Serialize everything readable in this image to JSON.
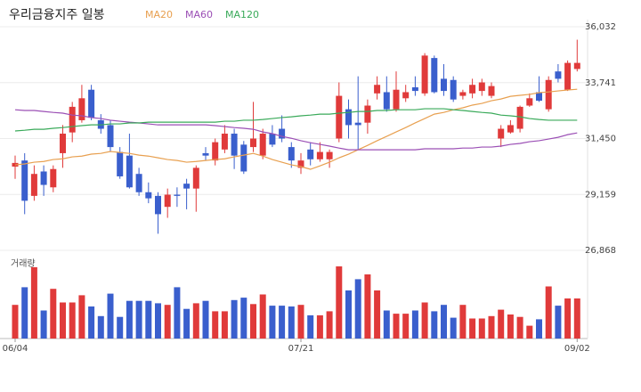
{
  "chart_data": {
    "type": "candlestick",
    "title": "우리금융지주 일봉",
    "volume_label": "거래량",
    "up_color": "#e03a3a",
    "down_color": "#3a5fcd",
    "categories": [
      "06/04",
      null,
      null,
      null,
      null,
      null,
      null,
      null,
      null,
      null,
      null,
      null,
      null,
      null,
      null,
      null,
      null,
      null,
      null,
      null,
      null,
      null,
      null,
      null,
      null,
      null,
      null,
      null,
      null,
      null,
      "07/21",
      null,
      null,
      null,
      null,
      null,
      null,
      null,
      null,
      null,
      null,
      null,
      null,
      null,
      null,
      null,
      null,
      null,
      null,
      null,
      null,
      null,
      null,
      null,
      null,
      null,
      null,
      null,
      null,
      "09/02"
    ],
    "open": [
      30300,
      30550,
      29100,
      30100,
      29450,
      30850,
      31700,
      32200,
      33450,
      32200,
      32000,
      30900,
      30750,
      30000,
      29250,
      29100,
      28650,
      29150,
      29600,
      29400,
      30850,
      30550,
      31000,
      31650,
      31200,
      31100,
      30750,
      31650,
      31850,
      31100,
      30250,
      31000,
      30600,
      30600,
      31450,
      32650,
      32100,
      32100,
      33300,
      33350,
      32650,
      33100,
      33550,
      33300,
      34750,
      33900,
      33850,
      33200,
      33300,
      33400,
      33200,
      31450,
      31700,
      31850,
      32800,
      33350,
      32650,
      34200,
      33450,
      34300
    ],
    "high": [
      30750,
      30850,
      30350,
      30350,
      30350,
      32000,
      32950,
      33650,
      33650,
      32450,
      32200,
      31100,
      31650,
      30250,
      29650,
      29250,
      29400,
      29450,
      29800,
      30350,
      31100,
      31450,
      32000,
      31850,
      31350,
      32950,
      31850,
      32000,
      32400,
      31300,
      30850,
      31300,
      31300,
      31000,
      33750,
      33050,
      34000,
      33050,
      34000,
      34000,
      34200,
      33650,
      34000,
      34950,
      34850,
      34500,
      34000,
      33450,
      33900,
      33900,
      33750,
      32000,
      32200,
      32800,
      33300,
      34000,
      34000,
      34500,
      34650,
      35500
    ],
    "low": [
      29800,
      28350,
      28900,
      29100,
      29250,
      30250,
      31300,
      32100,
      32200,
      31650,
      30900,
      29800,
      29400,
      29100,
      28800,
      27550,
      28200,
      28650,
      28550,
      28450,
      30550,
      30350,
      30850,
      30200,
      30000,
      30900,
      30600,
      31100,
      31300,
      30250,
      30000,
      30350,
      30500,
      30250,
      31300,
      31450,
      31000,
      31650,
      33050,
      32550,
      32550,
      32950,
      33200,
      33200,
      33300,
      33200,
      32950,
      33050,
      33100,
      33200,
      33100,
      31100,
      31650,
      31700,
      32750,
      32950,
      32550,
      33750,
      33400,
      34200
    ],
    "close": [
      30450,
      28900,
      30000,
      29550,
      30200,
      31650,
      32750,
      33100,
      32300,
      31850,
      31100,
      29900,
      29450,
      29250,
      29000,
      28350,
      29150,
      29100,
      29400,
      30250,
      30750,
      31300,
      31650,
      30750,
      30100,
      31450,
      31650,
      31200,
      31450,
      30550,
      30550,
      30600,
      30900,
      30900,
      33200,
      32000,
      32000,
      32800,
      33650,
      32650,
      33450,
      33350,
      33400,
      34850,
      33350,
      33400,
      33050,
      33350,
      33650,
      33750,
      33600,
      31850,
      32000,
      32750,
      33100,
      33000,
      33850,
      33900,
      34550,
      34550
    ],
    "volume": [
      42,
      64,
      89,
      35,
      62,
      45,
      45,
      54,
      40,
      28,
      56,
      27,
      47,
      47,
      47,
      44,
      42,
      64,
      37,
      44,
      47,
      34,
      34,
      48,
      51,
      43,
      55,
      41,
      41,
      40,
      42,
      29,
      29,
      34,
      90,
      60,
      74,
      80,
      60,
      35,
      31,
      31,
      35,
      45,
      34,
      42,
      26,
      42,
      25,
      25,
      28,
      36,
      30,
      27,
      16,
      24,
      65,
      41,
      50,
      50
    ],
    "volume_lim": [
      0,
      100
    ],
    "series": [
      {
        "name": "MA20",
        "color": "#e8a050",
        "values": [
          30370,
          30410,
          30480,
          30510,
          30590,
          30620,
          30700,
          30730,
          30810,
          30840,
          30920,
          30880,
          30840,
          30770,
          30730,
          30660,
          30590,
          30550,
          30480,
          30510,
          30550,
          30590,
          30620,
          30700,
          30770,
          30840,
          30730,
          30590,
          30480,
          30370,
          30300,
          30190,
          30330,
          30480,
          30660,
          30810,
          30990,
          31170,
          31360,
          31540,
          31720,
          31900,
          32090,
          32270,
          32450,
          32520,
          32630,
          32710,
          32820,
          32890,
          33000,
          33070,
          33180,
          33220,
          33260,
          33330,
          33360,
          33400,
          33440,
          33470
        ]
      },
      {
        "name": "MA60",
        "color": "#9b4fb5",
        "values": [
          32630,
          32600,
          32600,
          32560,
          32520,
          32490,
          32410,
          32380,
          32310,
          32270,
          32200,
          32160,
          32120,
          32090,
          32050,
          32010,
          32010,
          32010,
          32010,
          32010,
          32010,
          31980,
          31940,
          31900,
          31870,
          31830,
          31720,
          31650,
          31540,
          31460,
          31360,
          31280,
          31210,
          31140,
          31060,
          30990,
          30990,
          30990,
          30990,
          30990,
          30990,
          30990,
          30990,
          31030,
          31030,
          31030,
          31030,
          31060,
          31060,
          31100,
          31100,
          31140,
          31210,
          31250,
          31320,
          31360,
          31430,
          31500,
          31610,
          31680
        ]
      },
      {
        "name": "MA120",
        "color": "#3aaa5a",
        "values": [
          31760,
          31790,
          31830,
          31830,
          31870,
          31900,
          31940,
          31980,
          32010,
          32010,
          32050,
          32050,
          32090,
          32090,
          32120,
          32120,
          32120,
          32120,
          32120,
          32120,
          32120,
          32120,
          32160,
          32160,
          32200,
          32200,
          32230,
          32270,
          32310,
          32340,
          32380,
          32410,
          32450,
          32450,
          32490,
          32520,
          32560,
          32560,
          32600,
          32600,
          32630,
          32630,
          32630,
          32670,
          32670,
          32670,
          32630,
          32600,
          32560,
          32520,
          32490,
          32410,
          32380,
          32340,
          32270,
          32230,
          32200,
          32200,
          32200,
          32200
        ]
      }
    ],
    "ylim": [
      26868,
      36032
    ],
    "yticks": [
      {
        "value": 26868,
        "label": "26,868"
      },
      {
        "value": 29159,
        "label": "29,159"
      },
      {
        "value": 31450,
        "label": "31,450"
      },
      {
        "value": 33741,
        "label": "33,741"
      },
      {
        "value": 36032,
        "label": "36,032"
      }
    ],
    "grid": true
  }
}
